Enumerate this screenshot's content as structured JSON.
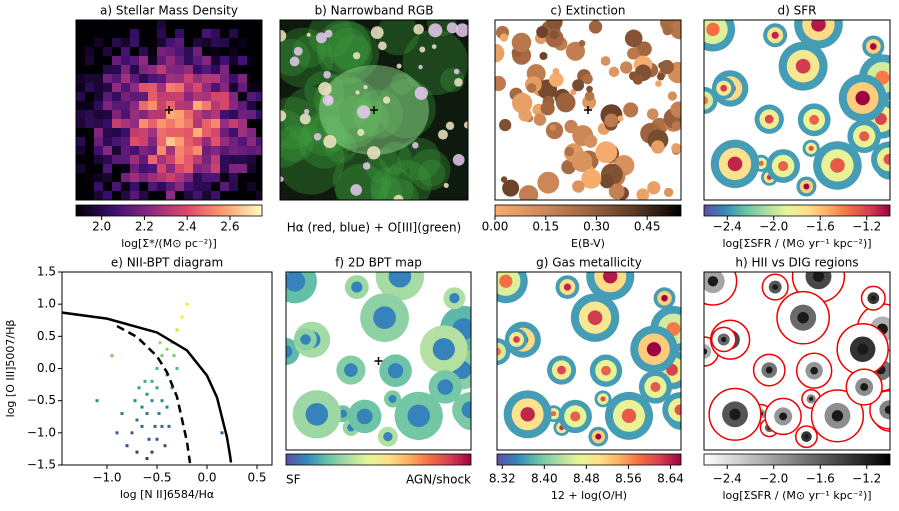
{
  "chart_data": [
    {
      "type": "image",
      "title": "a) Stellar Mass Density",
      "colormap": [
        "#000004",
        "#3b0f70",
        "#8c2981",
        "#de4968",
        "#fe9f6d",
        "#fcfdbf"
      ],
      "clim": [
        1.88,
        2.75
      ],
      "cticks": [
        {
          "value": 2.0,
          "label": "2.0"
        },
        2.2,
        2.4,
        2.6
      ],
      "colorbar_label": "log[Σ*/(M⊙ pc⁻²)]"
    },
    {
      "type": "image",
      "title": "b) Narrowband RGB",
      "caption": "Hα (red, blue) + O[III](green)"
    },
    {
      "type": "image",
      "title": "c) Extinction",
      "colormap": [
        "#f7ad6e",
        "#d08a58",
        "#a0643f",
        "#5c3a24",
        "#000000"
      ],
      "clim": [
        0,
        0.55
      ],
      "cticks": [
        {
          "value": 0,
          "label": "0.00"
        },
        0.15,
        {
          "value": 0.3,
          "label": "0.30"
        },
        0.45
      ],
      "colorbar_label": "E(B-V)"
    },
    {
      "type": "image",
      "title": "d) SFR",
      "colormap": [
        "#5e4fa2",
        "#3288bd",
        "#66c2a5",
        "#abdda4",
        "#e6f598",
        "#fee08b",
        "#fdae61",
        "#f46d43",
        "#d53e4f",
        "#9e0142"
      ],
      "clim": [
        -2.6,
        -1.0
      ],
      "cticks": [
        {
          "value": -2.4,
          "label": "−2.4"
        },
        {
          "value": -2.0,
          "label": "−2.0"
        },
        {
          "value": -1.6,
          "label": "−1.6"
        },
        {
          "value": -1.2,
          "label": "−1.2"
        }
      ],
      "colorbar_label": "log[ΣSFR / (M⊙ yr⁻¹ kpc⁻²)]"
    },
    {
      "type": "scatter",
      "title": "e) NII-BPT diagram",
      "xlabel": "log [N II]6584/Hα",
      "ylabel": "log [O III]5007/Hβ",
      "xlim": [
        -1.45,
        0.65
      ],
      "ylim": [
        -1.5,
        1.5
      ],
      "xticks": [
        {
          "value": -1.0,
          "label": "−1.0"
        },
        {
          "value": -0.5,
          "label": "−0.5"
        },
        {
          "value": 0.0,
          "label": "0.0"
        },
        0.5
      ],
      "yticks": [
        {
          "value": -1.5,
          "label": "−1.5"
        },
        {
          "value": -1.0,
          "label": "−1.0"
        },
        {
          "value": -0.5,
          "label": "−0.5"
        },
        {
          "value": 0.0,
          "label": "0.0"
        },
        0.5,
        {
          "value": 1.0,
          "label": "1.0"
        },
        1.5
      ],
      "colormap": [
        "#440154",
        "#3b528b",
        "#21918c",
        "#5ec962",
        "#fde725"
      ],
      "x": [
        -0.8,
        -0.75,
        -0.7,
        -0.65,
        -0.6,
        -0.55,
        -0.5,
        -0.45,
        -0.4,
        -0.35,
        -0.55,
        -0.5,
        -0.45,
        -0.4,
        -0.35,
        -0.3,
        -0.6,
        -0.7,
        -0.65,
        -0.6,
        -0.55,
        -0.5,
        -0.45,
        -0.4,
        -0.48,
        -0.52,
        -0.58,
        -0.42,
        -0.38,
        -0.62,
        -0.68,
        -0.72,
        -0.85,
        -0.9,
        -0.3,
        -0.25,
        -0.2,
        -1.1,
        -0.95,
        0.15,
        -0.33,
        -0.47
      ],
      "y": [
        -1.2,
        -1.0,
        -0.8,
        -0.6,
        -0.4,
        -0.2,
        0.0,
        0.2,
        0.3,
        0.4,
        -1.3,
        -1.1,
        -0.9,
        -0.6,
        -0.3,
        0.0,
        -1.4,
        -1.3,
        -0.9,
        -0.7,
        -0.5,
        -0.3,
        -0.5,
        -0.1,
        -0.7,
        -0.9,
        -1.1,
        -1.2,
        -0.9,
        -0.2,
        -0.3,
        -0.5,
        -0.7,
        -1.0,
        0.6,
        0.8,
        1.0,
        -0.5,
        0.2,
        -1.0,
        0.2,
        0.4
      ],
      "solid_line": {
        "x": [
          -1.5,
          -1.0,
          -0.5,
          -0.2,
          0.0,
          0.1,
          0.2,
          0.23,
          0.24
        ],
        "y": [
          0.88,
          0.775,
          0.56,
          0.28,
          -0.11,
          -0.45,
          -1.07,
          -1.35,
          -1.46
        ]
      },
      "dashed_line": {
        "x": [
          -0.9,
          -0.7,
          -0.5,
          -0.4,
          -0.3,
          -0.2,
          -0.17
        ],
        "y": [
          0.66,
          0.49,
          0.19,
          -0.06,
          -0.44,
          -1.14,
          -1.47
        ]
      }
    },
    {
      "type": "image",
      "title": "f) 2D BPT map",
      "colormap": [
        "#5e4fa2",
        "#3288bd",
        "#66c2a5",
        "#abdda4",
        "#e6f598",
        "#fee08b",
        "#fdae61",
        "#f46d43",
        "#d53e4f",
        "#9e0142"
      ],
      "cbar_left_label": "SF",
      "cbar_right_label": "AGN/shock"
    },
    {
      "type": "image",
      "title": "g) Gas metallicity",
      "colormap": [
        "#5e4fa2",
        "#3288bd",
        "#66c2a5",
        "#abdda4",
        "#e6f598",
        "#fee08b",
        "#fdae61",
        "#f46d43",
        "#d53e4f",
        "#9e0142"
      ],
      "clim": [
        8.31,
        8.66
      ],
      "cticks": [
        8.32,
        {
          "value": 8.4,
          "label": "8.40"
        },
        8.48,
        8.56,
        8.64
      ],
      "colorbar_label": "12 + log(O/H)"
    },
    {
      "type": "image",
      "title": "h) HII vs DIG regions",
      "colormap": [
        "#ffffff",
        "#000000"
      ],
      "clim": [
        -2.6,
        -1.0
      ],
      "cticks": [
        {
          "value": -2.4,
          "label": "−2.4"
        },
        {
          "value": -2.0,
          "label": "−2.0"
        },
        {
          "value": -1.6,
          "label": "−1.6"
        },
        {
          "value": -1.2,
          "label": "−1.2"
        }
      ],
      "colorbar_label": "log[ΣSFR / (M⊙ yr⁻¹ kpc⁻²)]"
    }
  ]
}
